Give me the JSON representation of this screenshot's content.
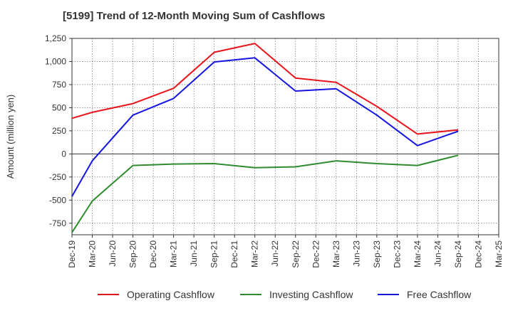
{
  "chart_data": {
    "type": "line",
    "title": "[5199]  Trend of 12-Month Moving Sum of Cashflows",
    "ylabel": "Amount (million yen)",
    "xlabel": "",
    "ylim": [
      -875,
      1250
    ],
    "yticks": [
      1250,
      1000,
      750,
      500,
      250,
      0,
      -250,
      -500,
      -750
    ],
    "ytick_labels": [
      "1,250",
      "1,000",
      "750",
      "500",
      "250",
      "0",
      "-250",
      "-500",
      "-750"
    ],
    "categories": [
      "Dec-19",
      "Mar-20",
      "Jun-20",
      "Sep-20",
      "Dec-20",
      "Mar-21",
      "Jun-21",
      "Sep-21",
      "Dec-21",
      "Mar-22",
      "Jun-22",
      "Sep-22",
      "Dec-22",
      "Mar-23",
      "Jun-23",
      "Sep-23",
      "Dec-23",
      "Mar-24",
      "Jun-24",
      "Sep-24",
      "Dec-24",
      "Mar-25"
    ],
    "grid": true,
    "legend_position": "bottom",
    "series": [
      {
        "name": "Operating Cashflow",
        "color": "#e8141b",
        "values": [
          385,
          450,
          null,
          545,
          null,
          710,
          null,
          1100,
          null,
          1195,
          null,
          820,
          null,
          775,
          null,
          515,
          null,
          215,
          null,
          260,
          null,
          null
        ]
      },
      {
        "name": "Investing Cashflow",
        "color": "#2e8b2e",
        "values": [
          -850,
          -510,
          null,
          -125,
          null,
          -110,
          null,
          -105,
          null,
          -150,
          null,
          -140,
          null,
          -75,
          null,
          -105,
          null,
          -125,
          null,
          -15,
          null,
          null
        ]
      },
      {
        "name": "Free Cashflow",
        "color": "#1515e0",
        "values": [
          -460,
          -75,
          null,
          420,
          null,
          600,
          null,
          995,
          null,
          1040,
          null,
          680,
          null,
          705,
          null,
          420,
          null,
          90,
          null,
          245,
          null,
          null
        ]
      }
    ]
  }
}
